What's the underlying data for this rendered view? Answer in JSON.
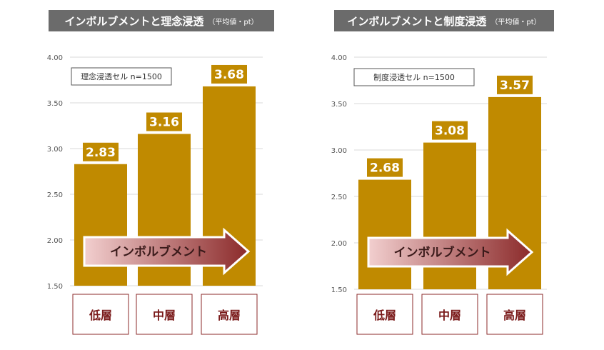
{
  "chart_data": [
    {
      "type": "bar",
      "title": "インボルブメントと理念浸透",
      "title_unit": "（平均値・pt）",
      "legend": "理念浸透セル n=1500",
      "categories": [
        "低層",
        "中層",
        "高層"
      ],
      "values": [
        2.83,
        3.16,
        3.68
      ],
      "value_labels": [
        "2.83",
        "3.16",
        "3.68"
      ],
      "ylim": [
        1.5,
        4.0
      ],
      "yticks": [
        "1.50",
        "2.00",
        "2.50",
        "3.00",
        "3.50",
        "4.00"
      ],
      "arrow_label": "インボルブメント",
      "grid": true
    },
    {
      "type": "bar",
      "title": "インボルブメントと制度浸透",
      "title_unit": "（平均値・pt）",
      "legend": "制度浸透セル n=1500",
      "categories": [
        "低層",
        "中層",
        "高層"
      ],
      "values": [
        2.68,
        3.08,
        3.57
      ],
      "value_labels": [
        "2.68",
        "3.08",
        "3.57"
      ],
      "ylim": [
        1.5,
        4.0
      ],
      "yticks": [
        "1.50",
        "2.00",
        "2.50",
        "3.00",
        "3.50",
        "4.00"
      ],
      "arrow_label": "インボルブメント",
      "grid": true
    }
  ],
  "colors": {
    "bar": "#c08a00",
    "title_bg": "#6b6b6b",
    "category_border": "#8b2a2a",
    "category_text": "#7a1a1a",
    "arrow_start": "#f2cfcf",
    "arrow_end": "#8b2a2a"
  }
}
